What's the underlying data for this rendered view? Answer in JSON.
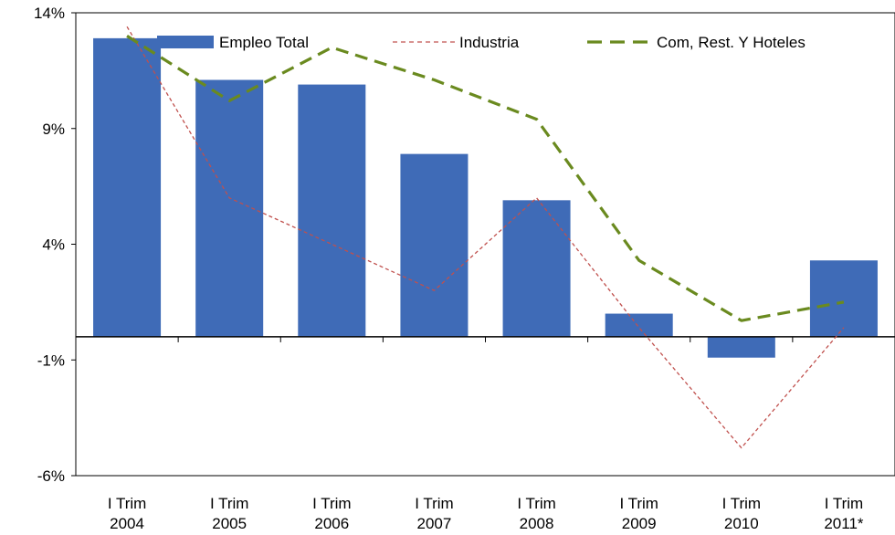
{
  "chart_data": {
    "type": "bar",
    "title": "",
    "xlabel": "",
    "ylabel": "",
    "categories": [
      [
        "I Trim",
        "2004"
      ],
      [
        "I Trim",
        "2005"
      ],
      [
        "I Trim",
        "2006"
      ],
      [
        "I Trim",
        "2007"
      ],
      [
        "I Trim",
        "2008"
      ],
      [
        "I Trim",
        "2009"
      ],
      [
        "I Trim",
        "2010"
      ],
      [
        "I Trim",
        "2011*"
      ]
    ],
    "ylim": [
      -6,
      14
    ],
    "yticks": [
      14,
      9,
      4,
      -1,
      -6
    ],
    "ytick_labels": [
      "14%",
      "9%",
      "4%",
      "-1%",
      "-6%"
    ],
    "grid": false,
    "legend_position": "top",
    "series": [
      {
        "name": "Empleo Total",
        "kind": "bar",
        "color": "#3f6bb7",
        "values": [
          12.9,
          11.1,
          10.9,
          7.9,
          5.9,
          1.0,
          -0.9,
          3.3
        ]
      },
      {
        "name": "Industria",
        "kind": "line-dotted",
        "color": "#c0504d",
        "values": [
          13.4,
          6.0,
          4.0,
          2.0,
          6.0,
          0.4,
          -4.8,
          0.4
        ]
      },
      {
        "name": "Com, Rest. Y Hoteles",
        "kind": "line-dashed",
        "color": "#6a8a1f",
        "values": [
          13.0,
          10.2,
          12.5,
          11.1,
          9.4,
          3.3,
          0.7,
          1.5
        ]
      }
    ]
  }
}
